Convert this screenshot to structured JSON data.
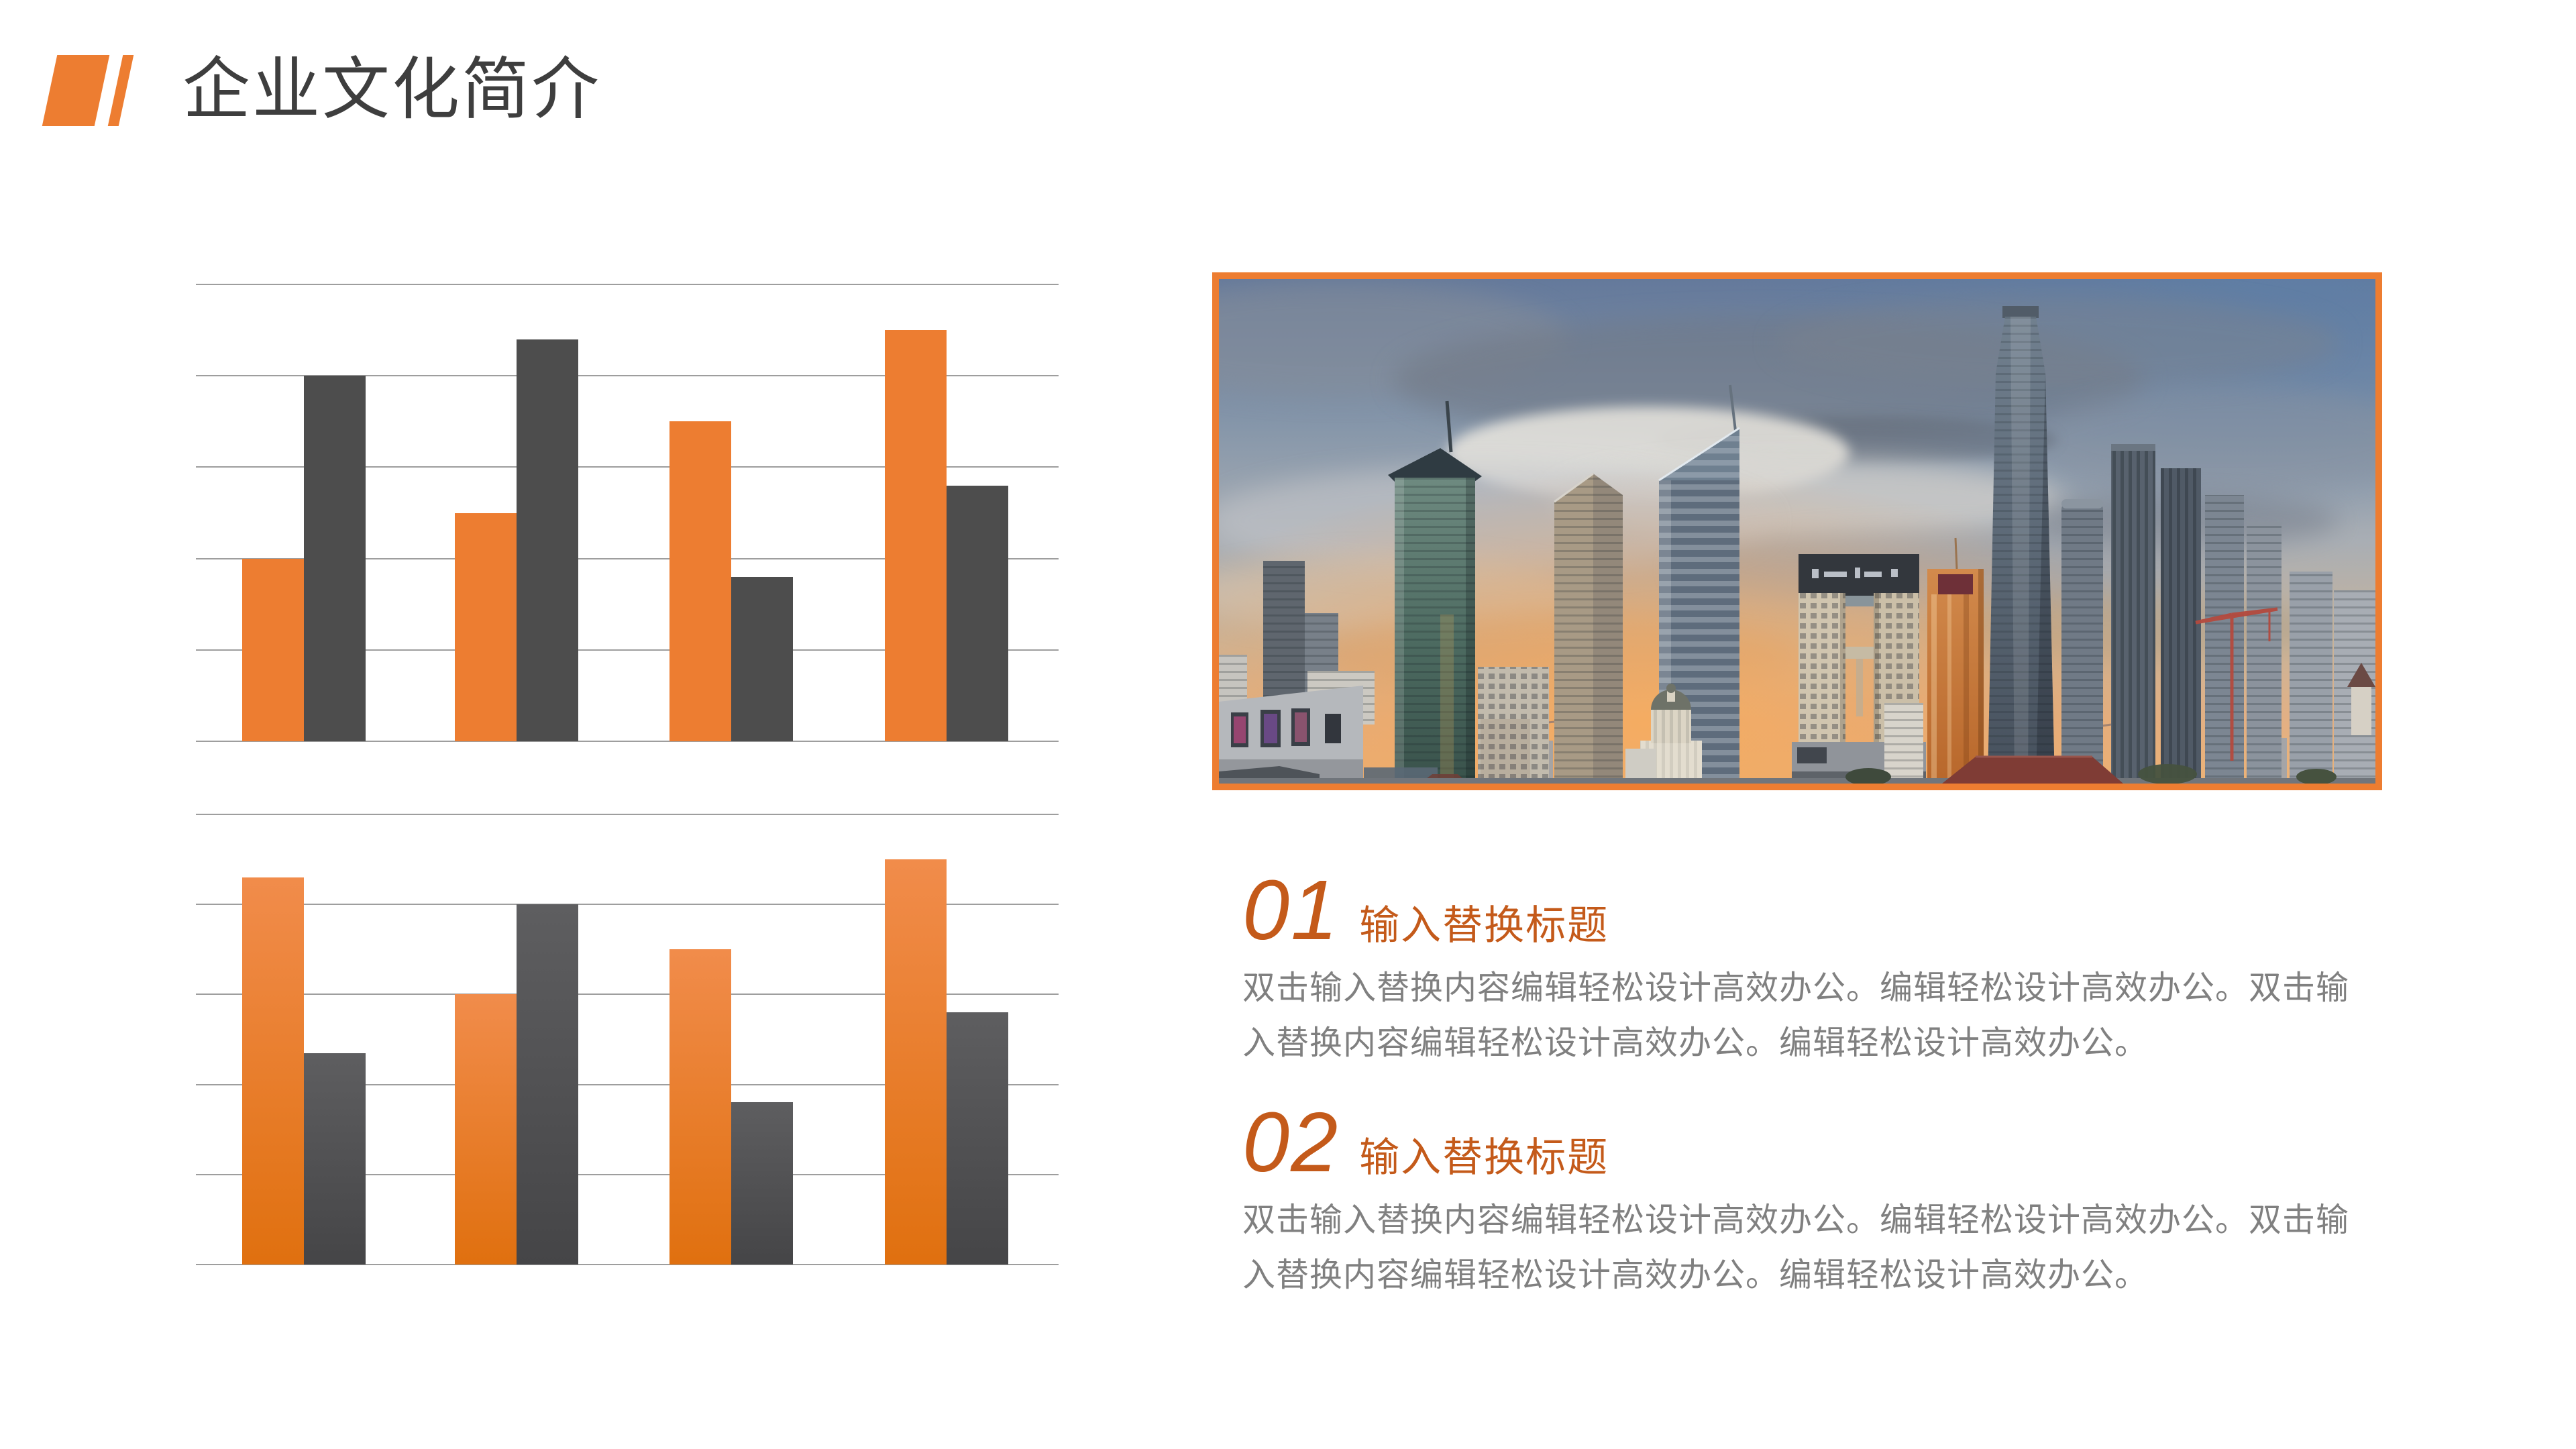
{
  "theme": {
    "accent_orange": "#ED7D31",
    "title_text": "#3E3E3E",
    "section_orange": "#C45A1A",
    "body_gray": "#808080",
    "background": "#FFFFFF"
  },
  "slide": {
    "title": "企业文化简介"
  },
  "chart_data": [
    {
      "type": "bar",
      "title": "",
      "xlabel": "",
      "ylabel": "",
      "x_tick_labels": [],
      "y_tick_labels": [],
      "categories": [
        "group-1",
        "group-2",
        "group-3",
        "group-4"
      ],
      "series": [
        {
          "name": "orange",
          "values": [
            2.0,
            2.5,
            3.5,
            4.5
          ],
          "color_top": "#ED7D31",
          "color_bottom": "#ED7D31"
        },
        {
          "name": "dark-gray",
          "values": [
            4.0,
            4.4,
            1.8,
            2.8
          ],
          "color_top": "#4D4D4D",
          "color_bottom": "#4D4D4D"
        }
      ],
      "ylim": [
        0,
        5
      ],
      "gridline_count": 6,
      "gridline_color": "#9E9E9E",
      "grid": "horizontal",
      "legend": "none",
      "bar_style": "flat"
    },
    {
      "type": "bar",
      "title": "",
      "xlabel": "",
      "ylabel": "",
      "x_tick_labels": [],
      "y_tick_labels": [],
      "categories": [
        "group-1",
        "group-2",
        "group-3",
        "group-4"
      ],
      "series": [
        {
          "name": "orange",
          "values": [
            4.3,
            3.0,
            3.5,
            4.5
          ],
          "color_top": "#F18C4B",
          "color_bottom": "#E0700F"
        },
        {
          "name": "dark-gray",
          "values": [
            2.35,
            4.0,
            1.8,
            2.8
          ],
          "color_top": "#5E5E60",
          "color_bottom": "#454547"
        }
      ],
      "ylim": [
        0,
        5
      ],
      "gridline_count": 6,
      "gridline_color": "#9E9E9E",
      "grid": "horizontal",
      "legend": "none",
      "bar_style": "vertical-gradient"
    }
  ],
  "photo": {
    "description": "city skyline with skyscrapers at dusk, dramatic clouds and sunset glow",
    "border_color": "#ED7D31"
  },
  "sections": [
    {
      "number": "01",
      "heading": "输入替换标题",
      "body_line1": "双击输入替换内容编辑轻松设计高效办公。编辑轻松设计高效办公。双击输",
      "body_line2": "入替换内容编辑轻松设计高效办公。编辑轻松设计高效办公。"
    },
    {
      "number": "02",
      "heading": "输入替换标题",
      "body_line1": "双击输入替换内容编辑轻松设计高效办公。编辑轻松设计高效办公。双击输",
      "body_line2": "入替换内容编辑轻松设计高效办公。编辑轻松设计高效办公。"
    }
  ]
}
